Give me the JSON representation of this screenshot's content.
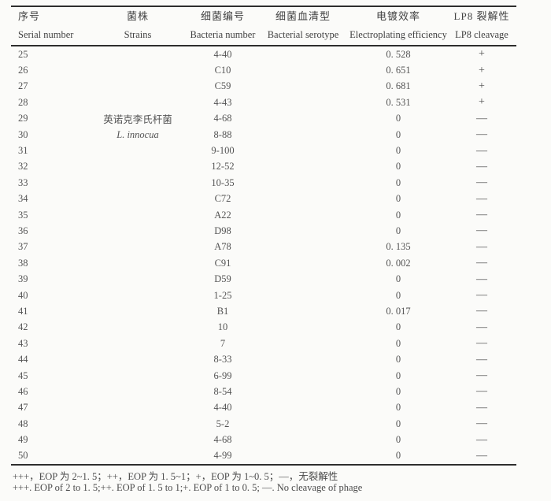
{
  "table": {
    "columns": [
      {
        "cn": "序号",
        "en": "Serial number"
      },
      {
        "cn": "菌株",
        "en": "Strains"
      },
      {
        "cn": "细菌编号",
        "en": "Bacteria number"
      },
      {
        "cn": "细菌血清型",
        "en": "Bacterial serotype"
      },
      {
        "cn": "电镀效率",
        "en": "Electroplating efficiency"
      },
      {
        "cn": "LP8 裂解性",
        "en": "LP8 cleavage"
      }
    ],
    "rows": [
      {
        "serial": "25",
        "strain": "",
        "strain_italic": false,
        "bacteria_number": "4-40",
        "serotype": "",
        "eop": "0. 528",
        "lp8": "+"
      },
      {
        "serial": "26",
        "strain": "",
        "strain_italic": false,
        "bacteria_number": "C10",
        "serotype": "",
        "eop": "0. 651",
        "lp8": "+"
      },
      {
        "serial": "27",
        "strain": "",
        "strain_italic": false,
        "bacteria_number": "C59",
        "serotype": "",
        "eop": "0. 681",
        "lp8": "+"
      },
      {
        "serial": "28",
        "strain": "",
        "strain_italic": false,
        "bacteria_number": "4-43",
        "serotype": "",
        "eop": "0. 531",
        "lp8": "+"
      },
      {
        "serial": "29",
        "strain": "英诺克李氏杆菌",
        "strain_italic": false,
        "bacteria_number": "4-68",
        "serotype": "",
        "eop": "0",
        "lp8": "—"
      },
      {
        "serial": "30",
        "strain": "L. innocua",
        "strain_italic": true,
        "bacteria_number": "8-88",
        "serotype": "",
        "eop": "0",
        "lp8": "—"
      },
      {
        "serial": "31",
        "strain": "",
        "strain_italic": false,
        "bacteria_number": "9-100",
        "serotype": "",
        "eop": "0",
        "lp8": "—"
      },
      {
        "serial": "32",
        "strain": "",
        "strain_italic": false,
        "bacteria_number": "12-52",
        "serotype": "",
        "eop": "0",
        "lp8": "—"
      },
      {
        "serial": "33",
        "strain": "",
        "strain_italic": false,
        "bacteria_number": "10-35",
        "serotype": "",
        "eop": "0",
        "lp8": "—"
      },
      {
        "serial": "34",
        "strain": "",
        "strain_italic": false,
        "bacteria_number": "C72",
        "serotype": "",
        "eop": "0",
        "lp8": "—"
      },
      {
        "serial": "35",
        "strain": "",
        "strain_italic": false,
        "bacteria_number": "A22",
        "serotype": "",
        "eop": "0",
        "lp8": "—"
      },
      {
        "serial": "36",
        "strain": "",
        "strain_italic": false,
        "bacteria_number": "D98",
        "serotype": "",
        "eop": "0",
        "lp8": "—"
      },
      {
        "serial": "37",
        "strain": "",
        "strain_italic": false,
        "bacteria_number": "A78",
        "serotype": "",
        "eop": "0. 135",
        "lp8": "—"
      },
      {
        "serial": "38",
        "strain": "",
        "strain_italic": false,
        "bacteria_number": "C91",
        "serotype": "",
        "eop": "0. 002",
        "lp8": "—"
      },
      {
        "serial": "39",
        "strain": "",
        "strain_italic": false,
        "bacteria_number": "D59",
        "serotype": "",
        "eop": "0",
        "lp8": "—"
      },
      {
        "serial": "40",
        "strain": "",
        "strain_italic": false,
        "bacteria_number": "1-25",
        "serotype": "",
        "eop": "0",
        "lp8": "—"
      },
      {
        "serial": "41",
        "strain": "",
        "strain_italic": false,
        "bacteria_number": "B1",
        "serotype": "",
        "eop": "0. 017",
        "lp8": "—"
      },
      {
        "serial": "42",
        "strain": "",
        "strain_italic": false,
        "bacteria_number": "10",
        "serotype": "",
        "eop": "0",
        "lp8": "—"
      },
      {
        "serial": "43",
        "strain": "",
        "strain_italic": false,
        "bacteria_number": "7",
        "serotype": "",
        "eop": "0",
        "lp8": "—"
      },
      {
        "serial": "44",
        "strain": "",
        "strain_italic": false,
        "bacteria_number": "8-33",
        "serotype": "",
        "eop": "0",
        "lp8": "—"
      },
      {
        "serial": "45",
        "strain": "",
        "strain_italic": false,
        "bacteria_number": "6-99",
        "serotype": "",
        "eop": "0",
        "lp8": "—"
      },
      {
        "serial": "46",
        "strain": "",
        "strain_italic": false,
        "bacteria_number": "8-54",
        "serotype": "",
        "eop": "0",
        "lp8": "—"
      },
      {
        "serial": "47",
        "strain": "",
        "strain_italic": false,
        "bacteria_number": "4-40",
        "serotype": "",
        "eop": "0",
        "lp8": "—"
      },
      {
        "serial": "48",
        "strain": "",
        "strain_italic": false,
        "bacteria_number": "5-2",
        "serotype": "",
        "eop": "0",
        "lp8": "—"
      },
      {
        "serial": "49",
        "strain": "",
        "strain_italic": false,
        "bacteria_number": "4-68",
        "serotype": "",
        "eop": "0",
        "lp8": "—"
      },
      {
        "serial": "50",
        "strain": "",
        "strain_italic": false,
        "bacteria_number": "4-99",
        "serotype": "",
        "eop": "0",
        "lp8": "—"
      }
    ]
  },
  "footnotes": {
    "cn": "+++，EOP 为 2~1. 5；++，EOP 为 1. 5~1；+，EOP 为 1~0. 5；—，无裂解性",
    "en": "+++. EOP of 2 to 1. 5;++. EOP of 1. 5 to 1;+. EOP of 1 to 0. 5; —. No cleavage of phage"
  },
  "colors": {
    "text": "#4d4d4d",
    "rule": "#2e2e2e",
    "background": "#fbfbf9"
  }
}
